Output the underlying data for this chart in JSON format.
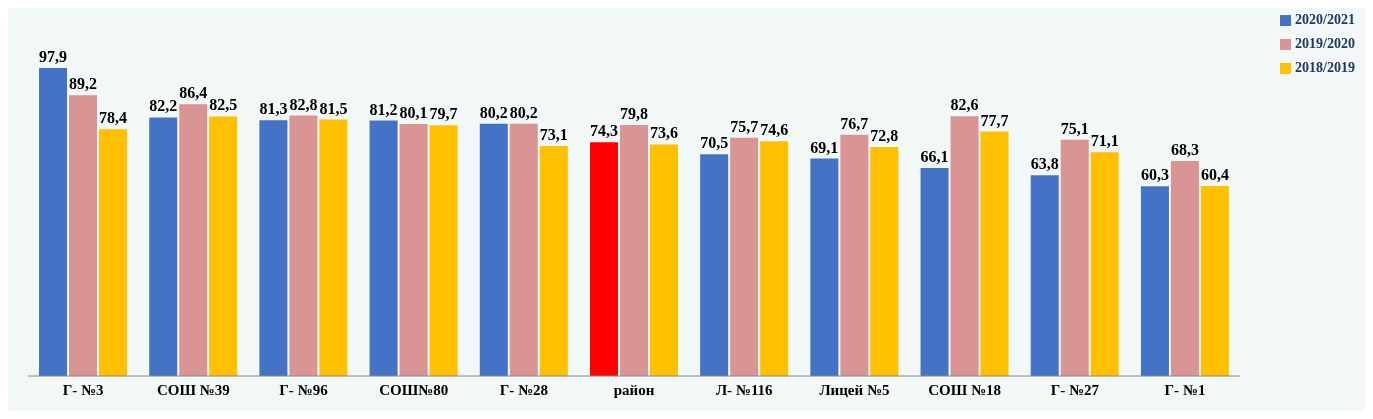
{
  "chart_data": {
    "type": "bar",
    "categories": [
      "Г- №3",
      "СОШ №39",
      "Г- №96",
      "СОШ№80",
      "Г- №28",
      "район",
      "Л- №116",
      "Лицей №5",
      "СОШ №18",
      "Г- №27",
      "Г- №1"
    ],
    "series": [
      {
        "name": "2020/2021",
        "color": "#4472c4",
        "colors": [
          "#4472c4",
          "#4472c4",
          "#4472c4",
          "#4472c4",
          "#4472c4",
          "#ff0000",
          "#4472c4",
          "#4472c4",
          "#4472c4",
          "#4472c4",
          "#4472c4"
        ],
        "values": [
          97.9,
          82.2,
          81.3,
          81.2,
          80.2,
          74.3,
          70.5,
          69.1,
          66.1,
          63.8,
          60.3
        ],
        "value_labels": [
          "97,9",
          "82,2",
          "81,3",
          "81,2",
          "80,2",
          "74,3",
          "70,5",
          "69,1",
          "66,1",
          "63,8",
          "60,3"
        ]
      },
      {
        "name": "2019/2020",
        "color": "#d99594",
        "values": [
          89.2,
          86.4,
          82.8,
          80.1,
          80.2,
          79.8,
          75.7,
          76.7,
          82.6,
          75.1,
          68.3
        ],
        "value_labels": [
          "89,2",
          "86,4",
          "82,8",
          "80,1",
          "80,2",
          "79,8",
          "75,7",
          "76,7",
          "82,6",
          "75,1",
          "68,3"
        ]
      },
      {
        "name": "2018/2019",
        "color": "#ffc000",
        "values": [
          78.4,
          82.5,
          81.5,
          79.7,
          73.1,
          73.6,
          74.6,
          72.8,
          77.7,
          71.1,
          60.4
        ],
        "value_labels": [
          "78,4",
          "82,5",
          "81,5",
          "79,7",
          "73,1",
          "73,6",
          "74,6",
          "72,8",
          "77,7",
          "71,1",
          "60,4"
        ]
      }
    ],
    "tick_labels": "x",
    "legend": "top right"
  }
}
